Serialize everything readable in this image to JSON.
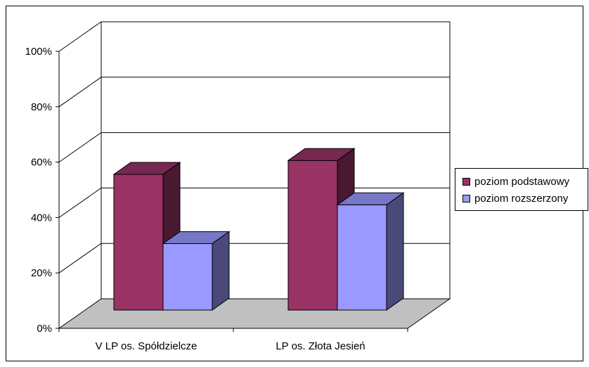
{
  "chart_data": {
    "type": "bar",
    "style": "3d-clustered-column",
    "categories": [
      "V LP os. Spółdzielcze",
      "LP os. Złota Jesień"
    ],
    "series": [
      {
        "name": "poziom podstawowy",
        "values": [
          49,
          54
        ],
        "color": "#993366"
      },
      {
        "name": "poziom rozszerzony",
        "values": [
          24,
          38
        ],
        "color": "#9999FF"
      }
    ],
    "y_ticks": [
      "0%",
      "20%",
      "40%",
      "60%",
      "80%",
      "100%"
    ],
    "ylim": [
      0,
      100
    ],
    "grid": true,
    "legend_position": "right",
    "floor_color": "#C0C0C0"
  }
}
